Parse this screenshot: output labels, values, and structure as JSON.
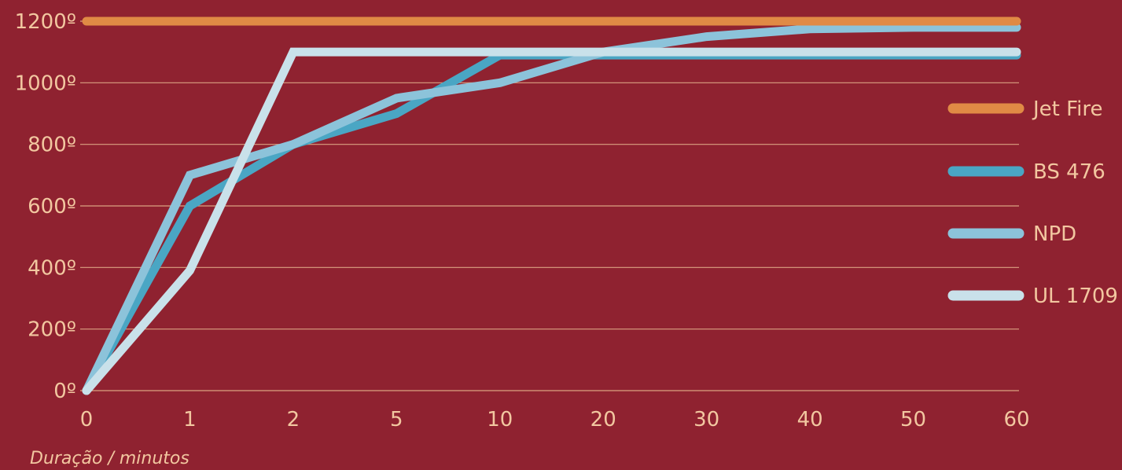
{
  "chart_data": {
    "type": "line",
    "title": "",
    "xlabel": "Duração / minutos",
    "ylabel": "",
    "categories": [
      "0",
      "1",
      "2",
      "5",
      "10",
      "20",
      "30",
      "40",
      "50",
      "60"
    ],
    "y_ticks": [
      "0º",
      "200º",
      "400º",
      "600º",
      "800º",
      "1000º",
      "1200º"
    ],
    "ylim": [
      0,
      1200
    ],
    "grid": true,
    "legend_position": "right",
    "series": [
      {
        "name": "Jet Fire",
        "color": "#e08a45",
        "values": [
          1200,
          1200,
          1200,
          1200,
          1200,
          1200,
          1200,
          1200,
          1200,
          1200
        ]
      },
      {
        "name": "BS 476",
        "color": "#4aa6c4",
        "values": [
          0,
          600,
          800,
          900,
          1090,
          1090,
          1090,
          1090,
          1090,
          1090
        ]
      },
      {
        "name": "NPD",
        "color": "#8cc3da",
        "values": [
          0,
          700,
          800,
          950,
          1000,
          1100,
          1150,
          1175,
          1180,
          1180
        ]
      },
      {
        "name": "UL 1709",
        "color": "#c9e1ea",
        "values": [
          0,
          390,
          1100,
          1100,
          1100,
          1100,
          1100,
          1100,
          1100,
          1100
        ]
      }
    ]
  }
}
